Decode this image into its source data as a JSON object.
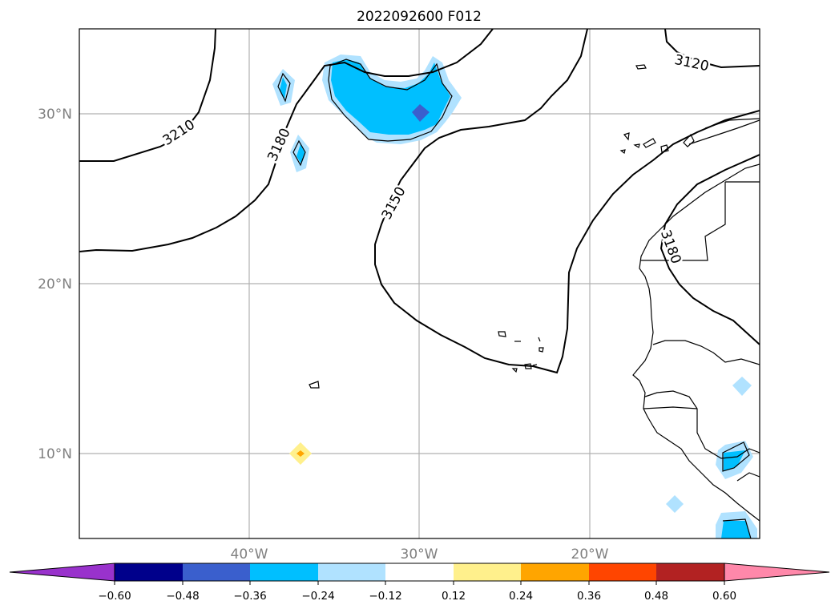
{
  "title": "2022092600 F012",
  "axes": {
    "lon_range": [
      -50,
      -10
    ],
    "lat_range": [
      5,
      35
    ],
    "lon_ticks": [
      {
        "value": -40,
        "label": "40°W"
      },
      {
        "value": -30,
        "label": "30°W"
      },
      {
        "value": -20,
        "label": "20°W"
      }
    ],
    "lat_ticks": [
      {
        "value": 30,
        "label": "30°N"
      },
      {
        "value": 20,
        "label": "20°N"
      },
      {
        "value": 10,
        "label": "10°N"
      }
    ],
    "grid": true
  },
  "colorbar": {
    "ticks": [
      "−0.60",
      "−0.48",
      "−0.36",
      "−0.24",
      "−0.12",
      "0.12",
      "0.24",
      "0.36",
      "0.48",
      "0.60"
    ],
    "colors": [
      "#9932cc",
      "#00008b",
      "#3a5fcd",
      "#00bfff",
      "#b0e2ff",
      "#ffffff",
      "#fff08c",
      "#ffa500",
      "#ff4500",
      "#b22222",
      "#ff88aa"
    ],
    "extend": "both"
  },
  "contours": {
    "levels": [
      "3210",
      "3180",
      "3150",
      "3120",
      "3180"
    ]
  }
}
